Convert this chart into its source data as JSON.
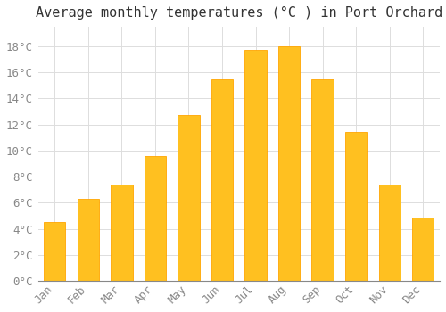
{
  "title": "Average monthly temperatures (°C ) in Port Orchard",
  "months": [
    "Jan",
    "Feb",
    "Mar",
    "Apr",
    "May",
    "Jun",
    "Jul",
    "Aug",
    "Sep",
    "Oct",
    "Nov",
    "Dec"
  ],
  "values": [
    4.5,
    6.3,
    7.4,
    9.6,
    12.7,
    15.5,
    17.7,
    18.0,
    15.5,
    11.4,
    7.4,
    4.9
  ],
  "bar_color": "#FFC020",
  "bar_edge_color": "#FFA500",
  "background_color": "#FFFFFF",
  "grid_color": "#DDDDDD",
  "ylim": [
    0,
    19.5
  ],
  "yticks": [
    0,
    2,
    4,
    6,
    8,
    10,
    12,
    14,
    16,
    18
  ],
  "title_fontsize": 11,
  "tick_fontsize": 9,
  "tick_label_color": "#888888",
  "title_color": "#333333"
}
